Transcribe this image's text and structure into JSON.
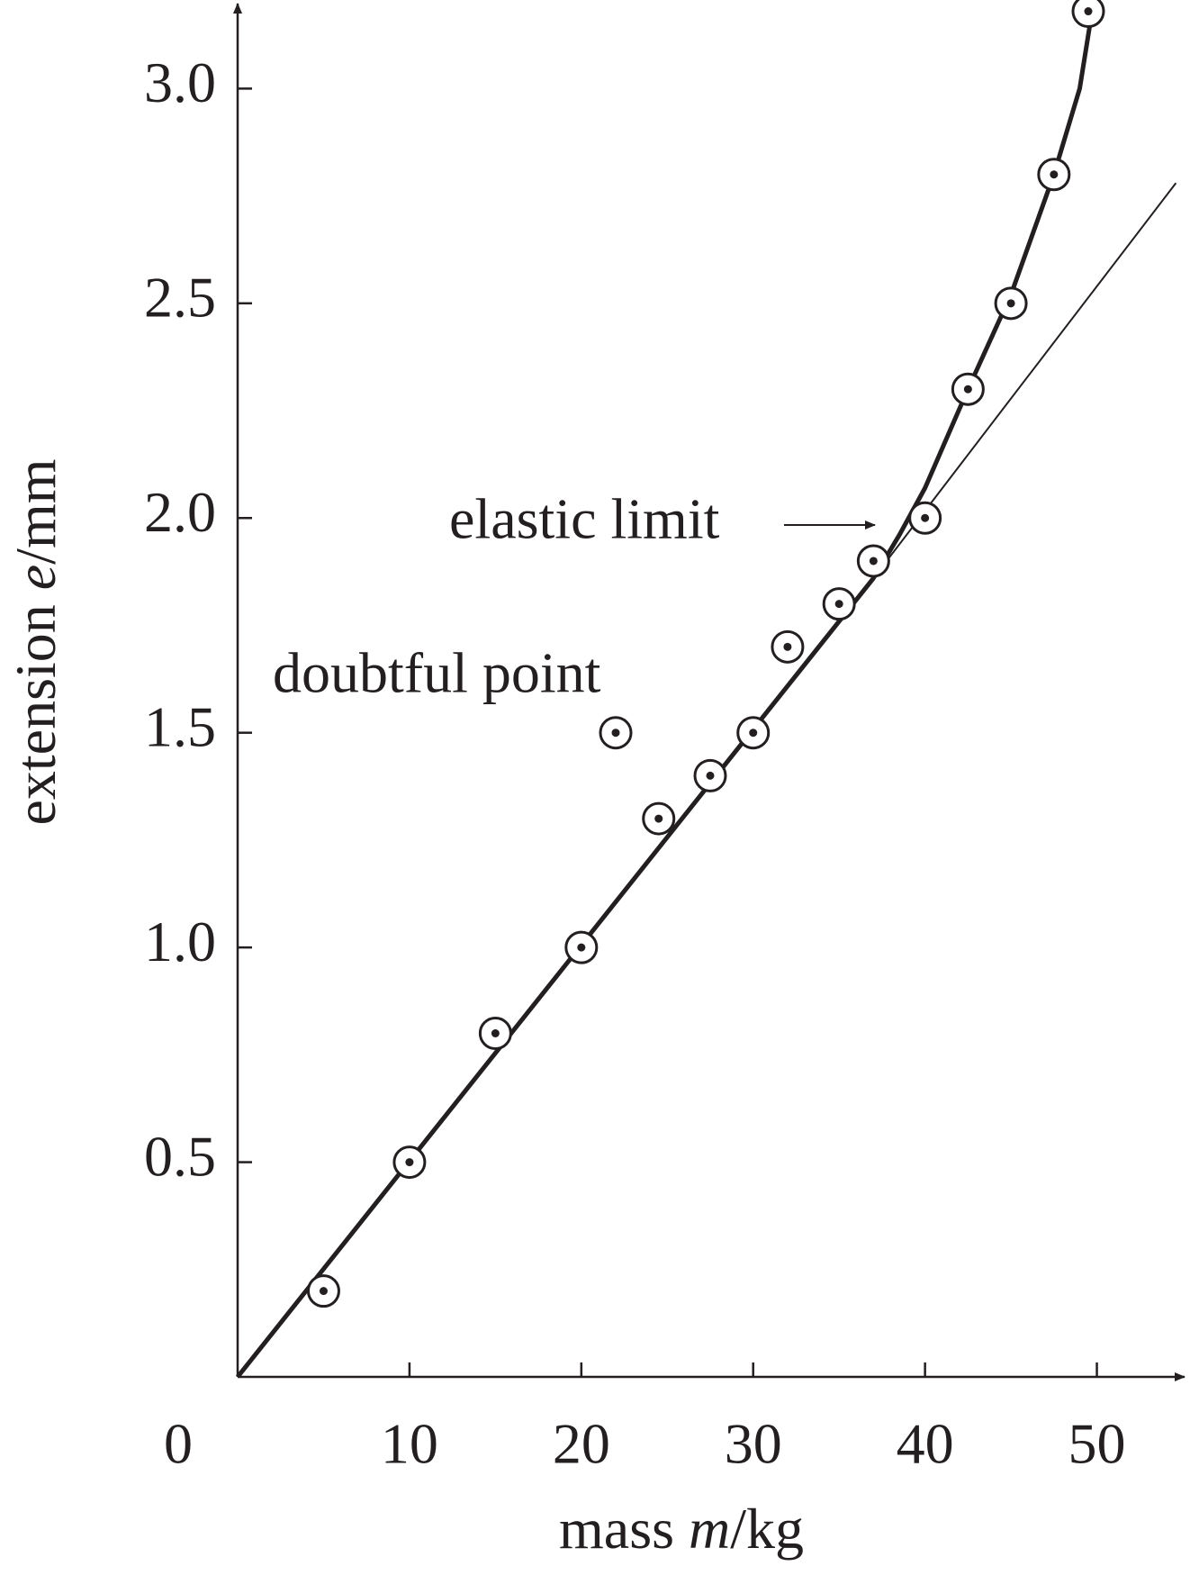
{
  "chart_data": {
    "type": "scatter",
    "xlabel": [
      "mass ",
      "m",
      "/kg"
    ],
    "ylabel": [
      "extension ",
      "e",
      "/mm"
    ],
    "points": {
      "x": [
        5,
        10,
        15,
        20,
        22,
        24.5,
        27.5,
        30,
        32,
        35,
        37,
        40,
        42.5,
        45,
        47.5,
        49.5
      ],
      "y": [
        0.2,
        0.5,
        0.8,
        1.0,
        1.5,
        1.3,
        1.4,
        1.5,
        1.7,
        1.8,
        1.9,
        2.0,
        2.3,
        2.5,
        2.8,
        3.18
      ]
    },
    "fit_curve": {
      "x": [
        0,
        37,
        38.5,
        40,
        42.5,
        45,
        47.5,
        49,
        49.8
      ],
      "y": [
        0,
        1.86,
        1.96,
        2.07,
        2.3,
        2.52,
        2.8,
        3.0,
        3.2
      ]
    },
    "tangent_line": {
      "x": [
        37,
        54.6
      ],
      "y": [
        1.86,
        2.78
      ]
    },
    "color": "#231f20",
    "xlim": [
      0,
      55
    ],
    "ylim": [
      0,
      3.2
    ],
    "xticks": [
      0,
      10,
      20,
      30,
      40,
      50
    ],
    "yticks": [
      0.5,
      {
        "value": 1,
        "label": "1.0"
      },
      1.5,
      {
        "value": 2,
        "label": "2.0"
      },
      2.5,
      {
        "value": 3,
        "label": "3.0"
      }
    ],
    "annotations": [
      "doubtful point",
      "elastic limit"
    ]
  }
}
